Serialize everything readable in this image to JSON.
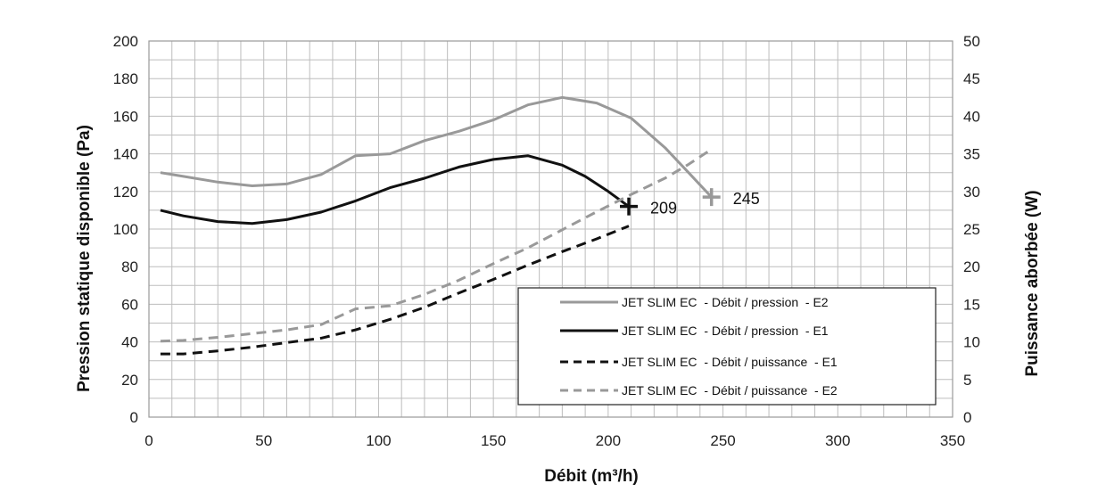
{
  "chart_data": {
    "type": "line",
    "xlabel": "Débit (m³/h)",
    "ylabel": "Pression statique disponible (Pa)",
    "y2label": "Puissance aborbée (W)",
    "xlim": [
      0,
      350
    ],
    "ylim": [
      0,
      200
    ],
    "y2lim": [
      0,
      50
    ],
    "xticks": [
      0,
      50,
      100,
      150,
      200,
      250,
      300,
      350
    ],
    "yticks": [
      0,
      20,
      40,
      60,
      80,
      100,
      120,
      140,
      160,
      180,
      200
    ],
    "y2ticks": [
      0,
      5,
      10,
      15,
      20,
      25,
      30,
      35,
      40,
      45,
      50
    ],
    "grid": true,
    "legend_position": "bottom-right",
    "series": [
      {
        "name": "JET SLIM EC  - Débit / pression  - E2",
        "axis": "left",
        "color": "#999999",
        "dash": "solid",
        "points": [
          [
            5,
            130
          ],
          [
            15,
            128
          ],
          [
            30,
            125
          ],
          [
            45,
            123
          ],
          [
            60,
            124
          ],
          [
            75,
            129
          ],
          [
            90,
            139
          ],
          [
            105,
            140
          ],
          [
            120,
            147
          ],
          [
            135,
            152
          ],
          [
            150,
            158
          ],
          [
            165,
            166
          ],
          [
            180,
            170
          ],
          [
            195,
            167
          ],
          [
            210,
            159
          ],
          [
            225,
            143
          ],
          [
            235,
            130
          ],
          [
            245,
            117
          ]
        ]
      },
      {
        "name": "JET SLIM EC  - Débit / pression  - E1",
        "axis": "left",
        "color": "#111111",
        "dash": "solid",
        "points": [
          [
            5,
            110
          ],
          [
            15,
            107
          ],
          [
            30,
            104
          ],
          [
            45,
            103
          ],
          [
            60,
            105
          ],
          [
            75,
            109
          ],
          [
            90,
            115
          ],
          [
            105,
            122
          ],
          [
            120,
            127
          ],
          [
            135,
            133
          ],
          [
            150,
            137
          ],
          [
            165,
            139
          ],
          [
            180,
            134
          ],
          [
            190,
            128
          ],
          [
            200,
            120
          ],
          [
            209,
            112
          ]
        ]
      },
      {
        "name": "JET SLIM EC  - Débit / puissance  - E1",
        "axis": "right",
        "color": "#111111",
        "dash": "dashed",
        "points": [
          [
            5,
            8.4
          ],
          [
            15,
            8.4
          ],
          [
            30,
            8.8
          ],
          [
            45,
            9.3
          ],
          [
            60,
            9.9
          ],
          [
            75,
            10.5
          ],
          [
            90,
            11.6
          ],
          [
            105,
            13.0
          ],
          [
            120,
            14.6
          ],
          [
            135,
            16.5
          ],
          [
            150,
            18.3
          ],
          [
            165,
            20.2
          ],
          [
            180,
            22.0
          ],
          [
            195,
            23.7
          ],
          [
            209,
            25.4
          ]
        ]
      },
      {
        "name": "JET SLIM EC  - Débit / puissance  - E2",
        "axis": "right",
        "color": "#999999",
        "dash": "dashed",
        "points": [
          [
            5,
            10.1
          ],
          [
            15,
            10.2
          ],
          [
            30,
            10.6
          ],
          [
            45,
            11.1
          ],
          [
            60,
            11.6
          ],
          [
            75,
            12.3
          ],
          [
            90,
            14.4
          ],
          [
            105,
            14.8
          ],
          [
            120,
            16.3
          ],
          [
            135,
            18.2
          ],
          [
            150,
            20.4
          ],
          [
            165,
            22.5
          ],
          [
            180,
            24.9
          ],
          [
            195,
            27.3
          ],
          [
            210,
            29.6
          ],
          [
            225,
            31.8
          ],
          [
            235,
            33.6
          ],
          [
            245,
            35.6
          ]
        ]
      }
    ],
    "markers": [
      {
        "x": 209,
        "y": 112,
        "axis": "left",
        "color": "#111111",
        "label": "209"
      },
      {
        "x": 245,
        "y": 117,
        "axis": "left",
        "color": "#999999",
        "label": "245"
      }
    ]
  }
}
